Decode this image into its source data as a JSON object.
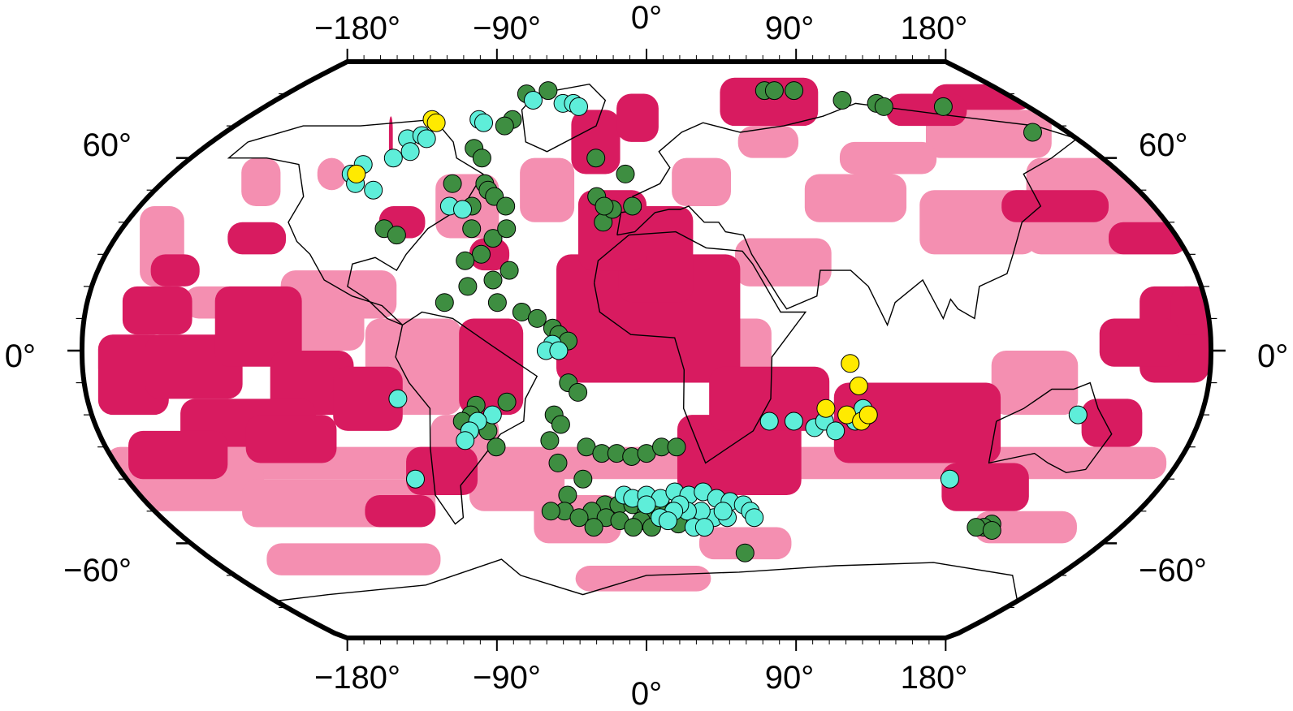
{
  "colors": {
    "anomaly_strong": "#D81B60",
    "anomaly_weak": "#F48FB1",
    "ocean_land_bg": "#ffffff",
    "coastline": "#000000",
    "frame": "#000000",
    "point_green": "#3E8E41",
    "point_cyan": "#5EEED9",
    "point_yellow": "#FFEA00"
  },
  "axes": {
    "top_lon_labels": [
      "−180°",
      "−90°",
      "0°",
      "90°",
      "180°"
    ],
    "bottom_lon_labels": [
      "−180°",
      "−90°",
      "0°",
      "90°",
      "180°"
    ],
    "left_lat_labels": [
      "60°",
      "0°",
      "−60°"
    ],
    "right_lat_labels": [
      "60°",
      "0°",
      "−60°"
    ]
  },
  "map": {
    "projection": "Robinson-like",
    "lon_range": [
      -180,
      180
    ],
    "lat_range": [
      -90,
      90
    ]
  },
  "points": {
    "green": [
      [
        -60,
        80
      ],
      [
        -50,
        81
      ],
      [
        60,
        81
      ],
      [
        65,
        81
      ],
      [
        75,
        81
      ],
      [
        95,
        78
      ],
      [
        110,
        77
      ],
      [
        112,
        76
      ],
      [
        140,
        76
      ],
      [
        165,
        68
      ],
      [
        -60,
        72
      ],
      [
        -62,
        70
      ],
      [
        -70,
        63
      ],
      [
        -65,
        60
      ],
      [
        -72,
        52
      ],
      [
        -60,
        52
      ],
      [
        -58,
        50
      ],
      [
        -55,
        48
      ],
      [
        -50,
        45
      ],
      [
        -62,
        45
      ],
      [
        -90,
        38
      ],
      [
        -85,
        36
      ],
      [
        -60,
        38
      ],
      [
        -52,
        35
      ],
      [
        -48,
        38
      ],
      [
        -55,
        30
      ],
      [
        -60,
        28
      ],
      [
        -45,
        25
      ],
      [
        -50,
        22
      ],
      [
        -58,
        20
      ],
      [
        -65,
        15
      ],
      [
        -48,
        15
      ],
      [
        -40,
        12
      ],
      [
        -15,
        40
      ],
      [
        -12,
        44
      ],
      [
        -5,
        45
      ],
      [
        -8,
        55
      ],
      [
        -20,
        60
      ],
      [
        -18,
        48
      ],
      [
        -15,
        45
      ],
      [
        -35,
        10
      ],
      [
        -30,
        7
      ],
      [
        -28,
        5
      ],
      [
        -25,
        3
      ],
      [
        -25,
        -10
      ],
      [
        -22,
        -13
      ],
      [
        -45,
        -16
      ],
      [
        -55,
        -17
      ],
      [
        -57,
        -20
      ],
      [
        -60,
        -22
      ],
      [
        -58,
        -25
      ],
      [
        -52,
        -25
      ],
      [
        -50,
        -30
      ],
      [
        -30,
        -20
      ],
      [
        -28,
        -23
      ],
      [
        -20,
        -30
      ],
      [
        -15,
        -32
      ],
      [
        -10,
        -32
      ],
      [
        -5,
        -33
      ],
      [
        0,
        -32
      ],
      [
        5,
        -30
      ],
      [
        10,
        -30
      ],
      [
        -22,
        -40
      ],
      [
        -28,
        -45
      ],
      [
        -30,
        -50
      ],
      [
        -15,
        -48
      ],
      [
        -10,
        -48
      ],
      [
        -5,
        -48
      ],
      [
        0,
        -50
      ],
      [
        5,
        -50
      ],
      [
        -20,
        -50
      ],
      [
        -15,
        -52
      ],
      [
        -25,
        -52
      ],
      [
        -10,
        -53
      ],
      [
        10,
        -52
      ],
      [
        12,
        -54
      ],
      [
        -20,
        -55
      ],
      [
        -2,
        -53
      ],
      [
        -5,
        -55
      ],
      [
        2,
        -55
      ],
      [
        8,
        -50
      ],
      [
        -35,
        -50
      ],
      [
        130,
        -54
      ],
      [
        128,
        -55
      ],
      [
        125,
        -55
      ],
      [
        132,
        -56
      ],
      [
        40,
        -63
      ],
      [
        -30,
        -35
      ],
      [
        -32,
        -28
      ]
    ],
    "cyan": [
      [
        -55,
        78
      ],
      [
        -40,
        77
      ],
      [
        -35,
        77
      ],
      [
        -32,
        76
      ],
      [
        -75,
        72
      ],
      [
        -72,
        71
      ],
      [
        -100,
        66
      ],
      [
        -95,
        67
      ],
      [
        -92,
        66
      ],
      [
        -95,
        62
      ],
      [
        -100,
        60
      ],
      [
        -110,
        58
      ],
      [
        -112,
        55
      ],
      [
        -108,
        52
      ],
      [
        -100,
        50
      ],
      [
        -70,
        45
      ],
      [
        -65,
        44
      ],
      [
        -80,
        -15
      ],
      [
        -50,
        -20
      ],
      [
        -55,
        -22
      ],
      [
        -58,
        -25
      ],
      [
        -60,
        -28
      ],
      [
        -80,
        -40
      ],
      [
        40,
        -22
      ],
      [
        48,
        -22
      ],
      [
        55,
        -24
      ],
      [
        58,
        -22
      ],
      [
        62,
        -25
      ],
      [
        68,
        -22
      ],
      [
        72,
        -20
      ],
      [
        70,
        -18
      ],
      [
        140,
        -20
      ],
      [
        105,
        -40
      ],
      [
        -8,
        -45
      ],
      [
        -5,
        -46
      ],
      [
        0,
        -45
      ],
      [
        5,
        -46
      ],
      [
        10,
        -44
      ],
      [
        15,
        -45
      ],
      [
        20,
        -44
      ],
      [
        25,
        -46
      ],
      [
        30,
        -47
      ],
      [
        35,
        -48
      ],
      [
        38,
        -50
      ],
      [
        40,
        -52
      ],
      [
        25,
        -52
      ],
      [
        20,
        -50
      ],
      [
        15,
        -50
      ],
      [
        12,
        -48
      ],
      [
        10,
        -50
      ],
      [
        18,
        -55
      ],
      [
        22,
        -55
      ],
      [
        30,
        -52
      ],
      [
        28,
        -50
      ],
      [
        5,
        -52
      ],
      [
        8,
        -53
      ],
      [
        0,
        -48
      ],
      [
        -30,
        2
      ],
      [
        -32,
        0
      ],
      [
        -28,
        0
      ]
    ],
    "yellow": [
      [
        -110,
        55
      ],
      [
        -96,
        72
      ],
      [
        -93,
        71
      ],
      [
        65,
        -4
      ],
      [
        68,
        -11
      ],
      [
        58,
        -18
      ],
      [
        65,
        -20
      ],
      [
        70,
        -22
      ],
      [
        72,
        -20
      ]
    ]
  },
  "anomaly_strong_patches": [
    [
      -175,
      -20,
      20,
      25
    ],
    [
      -160,
      -15,
      30,
      20
    ],
    [
      -140,
      -5,
      30,
      25
    ],
    [
      -120,
      -20,
      25,
      20
    ],
    [
      -100,
      -25,
      20,
      20
    ],
    [
      -150,
      -30,
      40,
      15
    ],
    [
      -170,
      5,
      25,
      15
    ],
    [
      -170,
      -40,
      25,
      15
    ],
    [
      -130,
      -35,
      25,
      15
    ],
    [
      160,
      -10,
      20,
      30
    ],
    [
      170,
      5,
      10,
      15
    ],
    [
      145,
      -5,
      25,
      15
    ],
    [
      -30,
      -10,
      60,
      40
    ],
    [
      -10,
      15,
      25,
      30
    ],
    [
      10,
      -45,
      45,
      25
    ],
    [
      20,
      -25,
      40,
      20
    ],
    [
      60,
      -35,
      60,
      25
    ],
    [
      -25,
      25,
      25,
      25
    ],
    [
      -35,
      55,
      25,
      20
    ],
    [
      -15,
      65,
      20,
      15
    ],
    [
      40,
      70,
      35,
      15
    ],
    [
      -60,
      -20,
      20,
      30
    ],
    [
      -80,
      -45,
      20,
      15
    ],
    [
      -100,
      -55,
      20,
      10
    ],
    [
      -115,
      58,
      15,
      15
    ],
    [
      150,
      75,
      30,
      8
    ],
    [
      120,
      70,
      20,
      10
    ],
    [
      -165,
      20,
      20,
      10
    ],
    [
      -145,
      30,
      25,
      10
    ],
    [
      100,
      -50,
      40,
      15
    ],
    [
      140,
      -30,
      25,
      15
    ],
    [
      -60,
      25,
      15,
      10
    ],
    [
      -95,
      35,
      20,
      10
    ],
    [
      130,
      40,
      30,
      10
    ],
    [
      160,
      30,
      20,
      10
    ]
  ],
  "anomaly_weak_patches": [
    [
      -180,
      -40,
      360,
      10
    ],
    [
      -180,
      -50,
      40,
      15
    ],
    [
      -140,
      -55,
      60,
      15
    ],
    [
      -60,
      -50,
      30,
      15
    ],
    [
      -180,
      20,
      30,
      25
    ],
    [
      -160,
      45,
      30,
      15
    ],
    [
      -130,
      50,
      20,
      10
    ],
    [
      -80,
      35,
      30,
      20
    ],
    [
      -50,
      40,
      25,
      20
    ],
    [
      0,
      -10,
      40,
      20
    ],
    [
      70,
      -35,
      40,
      15
    ],
    [
      110,
      -20,
      30,
      20
    ],
    [
      150,
      30,
      30,
      30
    ],
    [
      -175,
      -10,
      20,
      15
    ],
    [
      -120,
      0,
      30,
      25
    ],
    [
      -90,
      -20,
      30,
      30
    ],
    [
      60,
      40,
      30,
      15
    ],
    [
      100,
      30,
      30,
      20
    ],
    [
      -40,
      -60,
      30,
      15
    ],
    [
      20,
      -65,
      40,
      10
    ],
    [
      120,
      -60,
      50,
      10
    ],
    [
      -150,
      -70,
      60,
      10
    ],
    [
      -30,
      -75,
      60,
      8
    ],
    [
      -100,
      10,
      20,
      15
    ],
    [
      -70,
      -35,
      20,
      15
    ],
    [
      10,
      45,
      20,
      15
    ],
    [
      30,
      20,
      30,
      15
    ],
    [
      -150,
      10,
      20,
      10
    ],
    [
      130,
      60,
      30,
      15
    ],
    [
      40,
      60,
      20,
      10
    ],
    [
      80,
      55,
      30,
      10
    ]
  ]
}
